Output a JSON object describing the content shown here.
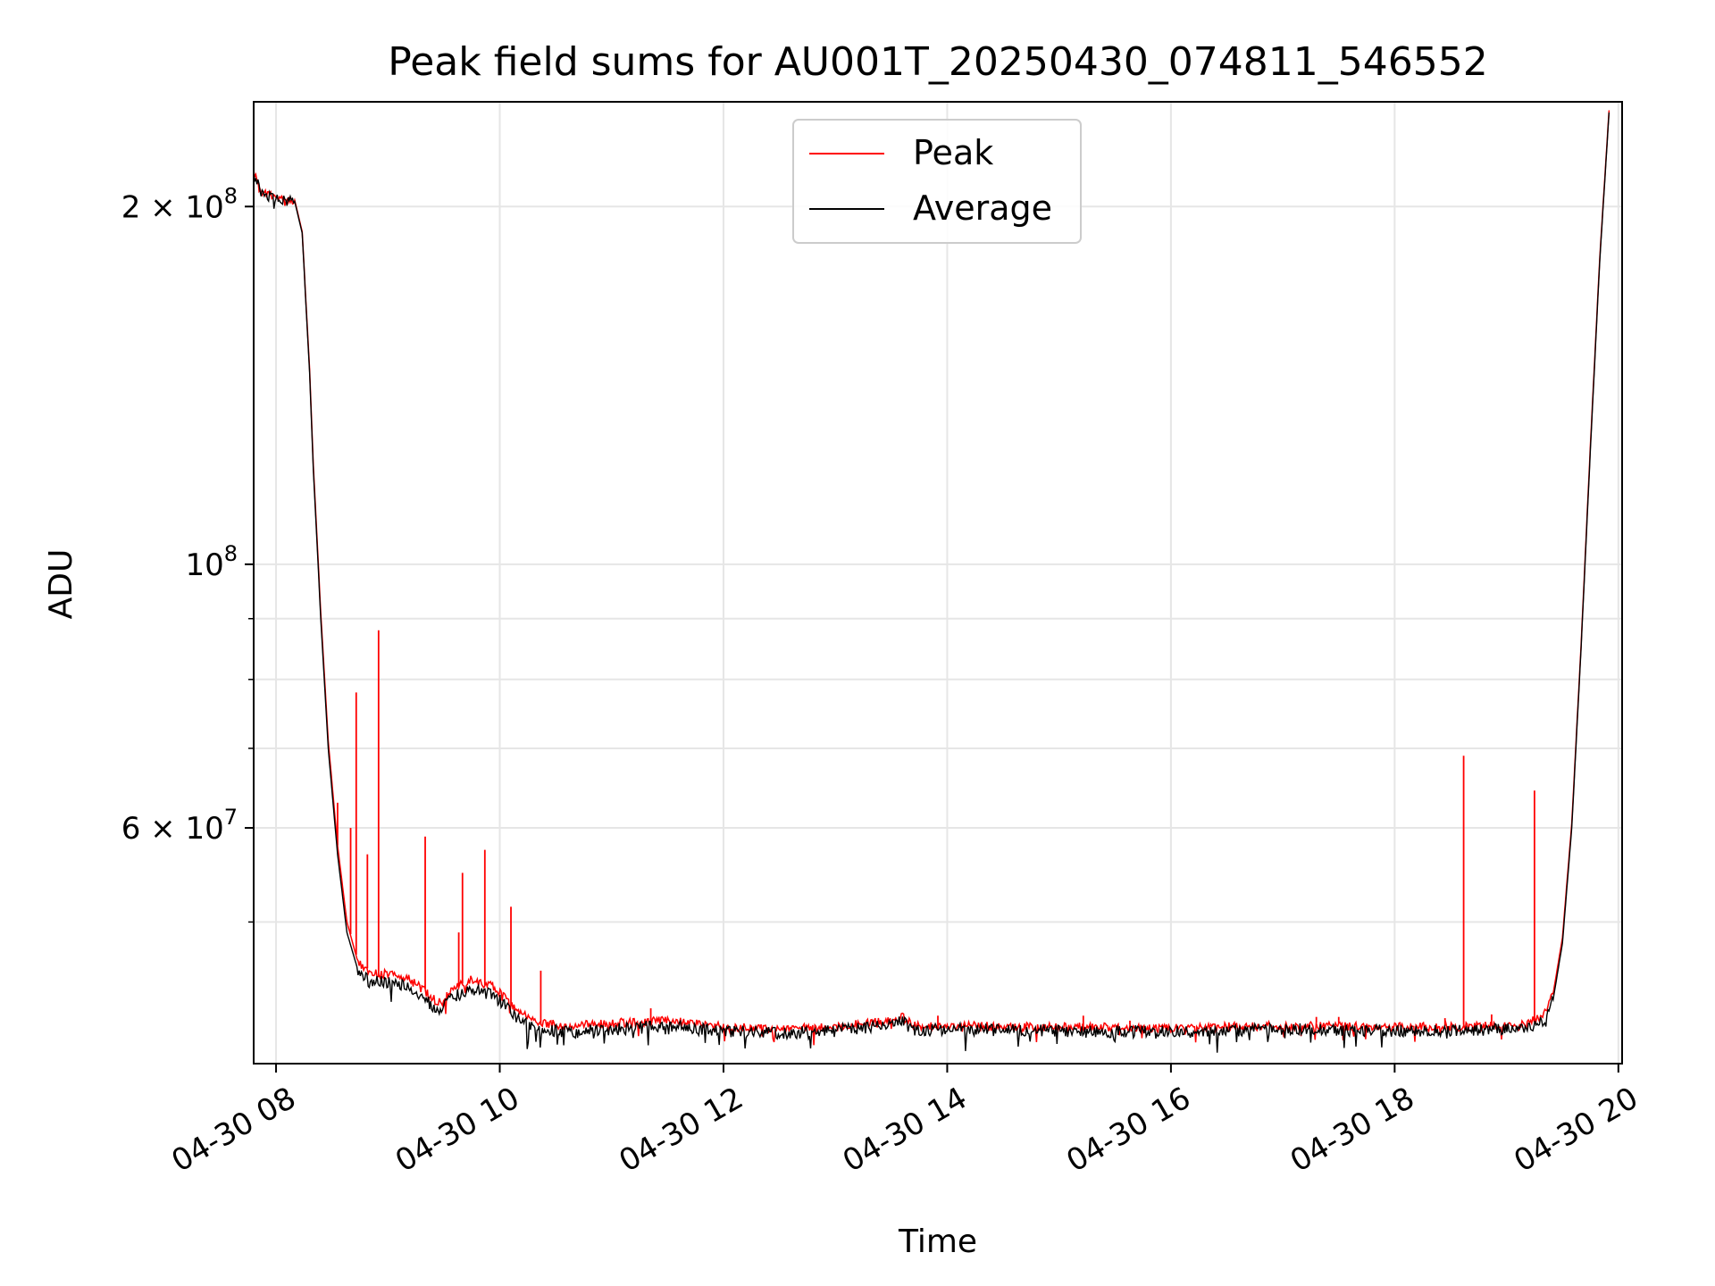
{
  "colors": {
    "peak": "#ff0000",
    "average": "#000000",
    "grid": "#e6e6e6",
    "axes": "#000000"
  },
  "chart_data": {
    "type": "line",
    "title": "Peak field sums for AU001T_20250430_074811_546552",
    "xlabel": "Time",
    "ylabel": "ADU",
    "yscale": "log",
    "grid": true,
    "legend_placement": "top-center",
    "xlim": [
      "2025-04-30T07:48",
      "2025-04-30T20:02"
    ],
    "ylim": [
      38000000,
      245000000
    ],
    "x_ticks": [
      {
        "t": "2025-04-30T08:00",
        "label": "04-30 08"
      },
      {
        "t": "2025-04-30T10:00",
        "label": "04-30 10"
      },
      {
        "t": "2025-04-30T12:00",
        "label": "04-30 12"
      },
      {
        "t": "2025-04-30T14:00",
        "label": "04-30 14"
      },
      {
        "t": "2025-04-30T16:00",
        "label": "04-30 16"
      },
      {
        "t": "2025-04-30T18:00",
        "label": "04-30 18"
      },
      {
        "t": "2025-04-30T20:00",
        "label": "04-30 20"
      }
    ],
    "y_ticks_major": [
      {
        "v": 60000000,
        "mant": "6",
        "exp": "7"
      },
      {
        "v": 100000000,
        "mant": "",
        "exp": "8"
      },
      {
        "v": 200000000,
        "mant": "2",
        "exp": "8"
      }
    ],
    "y_ticks_minor": [
      50000000,
      70000000,
      80000000,
      90000000
    ],
    "series": [
      {
        "name": "Average",
        "color": "#000000",
        "points": [
          [
            "2025-04-30T07:48",
            213000000
          ],
          [
            "2025-04-30T07:52",
            205000000
          ],
          [
            "2025-04-30T08:00",
            203000000
          ],
          [
            "2025-04-30T08:10",
            202000000
          ],
          [
            "2025-04-30T08:14",
            190000000
          ],
          [
            "2025-04-30T08:18",
            145000000
          ],
          [
            "2025-04-30T08:20",
            120000000
          ],
          [
            "2025-04-30T08:24",
            90000000
          ],
          [
            "2025-04-30T08:28",
            70000000
          ],
          [
            "2025-04-30T08:33",
            57000000
          ],
          [
            "2025-04-30T08:38",
            49000000
          ],
          [
            "2025-04-30T08:44",
            45500000
          ],
          [
            "2025-04-30T08:50",
            44500000
          ],
          [
            "2025-04-30T09:00",
            44500000
          ],
          [
            "2025-04-30T09:10",
            44200000
          ],
          [
            "2025-04-30T09:20",
            43000000
          ],
          [
            "2025-04-30T09:27",
            42000000
          ],
          [
            "2025-04-30T09:35",
            43300000
          ],
          [
            "2025-04-30T09:45",
            43900000
          ],
          [
            "2025-04-30T09:55",
            43500000
          ],
          [
            "2025-04-30T10:03",
            42600000
          ],
          [
            "2025-04-30T10:10",
            41400000
          ],
          [
            "2025-04-30T10:20",
            40600000
          ],
          [
            "2025-04-30T10:40",
            40400000
          ],
          [
            "2025-04-30T11:00",
            40600000
          ],
          [
            "2025-04-30T11:30",
            40900000
          ],
          [
            "2025-04-30T12:00",
            40500000
          ],
          [
            "2025-04-30T12:30",
            40300000
          ],
          [
            "2025-04-30T13:00",
            40500000
          ],
          [
            "2025-04-30T13:30",
            41000000
          ],
          [
            "2025-04-30T13:36",
            41300000
          ],
          [
            "2025-04-30T13:42",
            40600000
          ],
          [
            "2025-04-30T14:00",
            40600000
          ],
          [
            "2025-04-30T15:00",
            40500000
          ],
          [
            "2025-04-30T16:00",
            40400000
          ],
          [
            "2025-04-30T17:00",
            40600000
          ],
          [
            "2025-04-30T18:00",
            40500000
          ],
          [
            "2025-04-30T18:40",
            40500000
          ],
          [
            "2025-04-30T19:10",
            40700000
          ],
          [
            "2025-04-30T19:20",
            41300000
          ],
          [
            "2025-04-30T19:25",
            43000000
          ],
          [
            "2025-04-30T19:30",
            48000000
          ],
          [
            "2025-04-30T19:35",
            60000000
          ],
          [
            "2025-04-30T19:40",
            85000000
          ],
          [
            "2025-04-30T19:45",
            125000000
          ],
          [
            "2025-04-30T19:50",
            180000000
          ],
          [
            "2025-04-30T19:55",
            240000000
          ]
        ]
      },
      {
        "name": "Peak",
        "color": "#ff0000",
        "points": [
          [
            "2025-04-30T07:48",
            213500000
          ],
          [
            "2025-04-30T07:52",
            205500000
          ],
          [
            "2025-04-30T08:00",
            203500000
          ],
          [
            "2025-04-30T08:10",
            202500000
          ],
          [
            "2025-04-30T08:14",
            190500000
          ],
          [
            "2025-04-30T08:18",
            146000000
          ],
          [
            "2025-04-30T08:20",
            121000000
          ],
          [
            "2025-04-30T08:24",
            91000000
          ],
          [
            "2025-04-30T08:28",
            71000000
          ],
          [
            "2025-04-30T08:33",
            58000000
          ],
          [
            "2025-04-30T08:38",
            50000000
          ],
          [
            "2025-04-30T08:44",
            46200000
          ],
          [
            "2025-04-30T08:50",
            45300000
          ],
          [
            "2025-04-30T09:00",
            45200000
          ],
          [
            "2025-04-30T09:10",
            44900000
          ],
          [
            "2025-04-30T09:20",
            43700000
          ],
          [
            "2025-04-30T09:27",
            42700000
          ],
          [
            "2025-04-30T09:35",
            44000000
          ],
          [
            "2025-04-30T09:45",
            44700000
          ],
          [
            "2025-04-30T09:55",
            44200000
          ],
          [
            "2025-04-30T10:03",
            43300000
          ],
          [
            "2025-04-30T10:10",
            42000000
          ],
          [
            "2025-04-30T10:20",
            41100000
          ],
          [
            "2025-04-30T10:40",
            40900000
          ],
          [
            "2025-04-30T11:00",
            41100000
          ],
          [
            "2025-04-30T11:30",
            41300000
          ],
          [
            "2025-04-30T12:00",
            40800000
          ],
          [
            "2025-04-30T12:30",
            40600000
          ],
          [
            "2025-04-30T13:00",
            40800000
          ],
          [
            "2025-04-30T13:30",
            41300000
          ],
          [
            "2025-04-30T13:36",
            41600000
          ],
          [
            "2025-04-30T13:42",
            40900000
          ],
          [
            "2025-04-30T14:00",
            40900000
          ],
          [
            "2025-04-30T15:00",
            40800000
          ],
          [
            "2025-04-30T16:00",
            40700000
          ],
          [
            "2025-04-30T17:00",
            40900000
          ],
          [
            "2025-04-30T18:00",
            40800000
          ],
          [
            "2025-04-30T18:40",
            40800000
          ],
          [
            "2025-04-30T19:10",
            41000000
          ],
          [
            "2025-04-30T19:20",
            41700000
          ],
          [
            "2025-04-30T19:25",
            43500000
          ],
          [
            "2025-04-30T19:30",
            48500000
          ],
          [
            "2025-04-30T19:35",
            60500000
          ],
          [
            "2025-04-30T19:40",
            85500000
          ],
          [
            "2025-04-30T19:45",
            126000000
          ],
          [
            "2025-04-30T19:50",
            181000000
          ],
          [
            "2025-04-30T19:55",
            241000000
          ]
        ],
        "spikes": [
          [
            "2025-04-30T08:33",
            63000000
          ],
          [
            "2025-04-30T08:40",
            60000000
          ],
          [
            "2025-04-30T08:43",
            78000000
          ],
          [
            "2025-04-30T08:49",
            57000000
          ],
          [
            "2025-04-30T08:55",
            88000000
          ],
          [
            "2025-04-30T09:20",
            59000000
          ],
          [
            "2025-04-30T09:38",
            49000000
          ],
          [
            "2025-04-30T09:40",
            55000000
          ],
          [
            "2025-04-30T09:52",
            57500000
          ],
          [
            "2025-04-30T10:06",
            51500000
          ],
          [
            "2025-04-30T10:22",
            45500000
          ],
          [
            "2025-04-30T11:21",
            42300000
          ],
          [
            "2025-04-30T13:55",
            41700000
          ],
          [
            "2025-04-30T15:13",
            41700000
          ],
          [
            "2025-04-30T15:38",
            41300000
          ],
          [
            "2025-04-30T17:18",
            41600000
          ],
          [
            "2025-04-30T17:30",
            41600000
          ],
          [
            "2025-04-30T18:27",
            41500000
          ],
          [
            "2025-04-30T18:37",
            69000000
          ],
          [
            "2025-04-30T18:52",
            41800000
          ],
          [
            "2025-04-30T19:15",
            64500000
          ]
        ]
      }
    ]
  }
}
